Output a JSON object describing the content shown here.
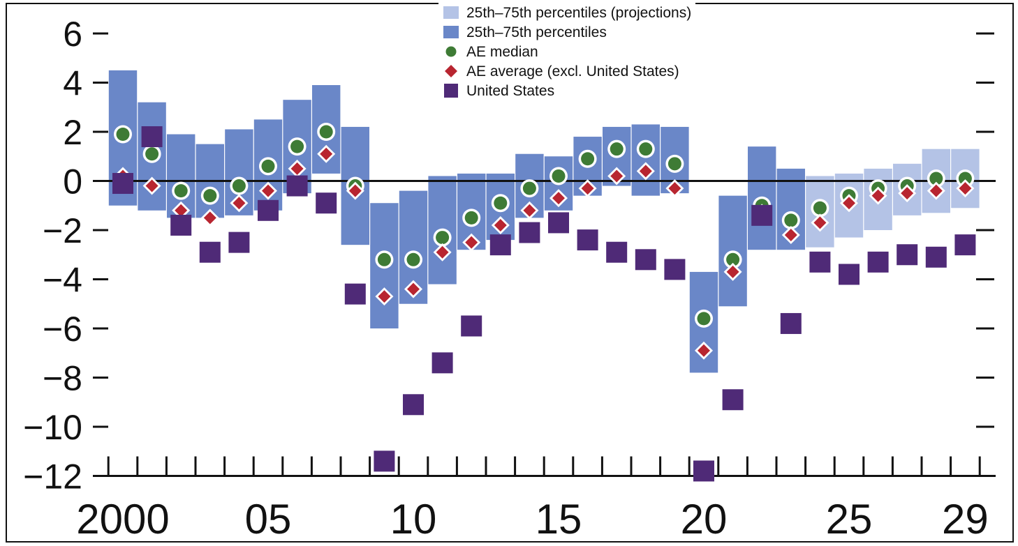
{
  "chart_data": {
    "type": "bar",
    "title": "",
    "xlabel": "",
    "ylabel": "",
    "x": [
      2000,
      2001,
      2002,
      2003,
      2004,
      2005,
      2006,
      2007,
      2008,
      2009,
      2010,
      2011,
      2012,
      2013,
      2014,
      2015,
      2016,
      2017,
      2018,
      2019,
      2020,
      2021,
      2022,
      2023,
      2024,
      2025,
      2026,
      2027,
      2028,
      2029
    ],
    "x_tick_labels": [
      {
        "x": 2000,
        "label": "2000"
      },
      {
        "x": 2005,
        "label": "05"
      },
      {
        "x": 2010,
        "label": "10"
      },
      {
        "x": 2015,
        "label": "15"
      },
      {
        "x": 2020,
        "label": "20"
      },
      {
        "x": 2025,
        "label": "25"
      },
      {
        "x": 2029,
        "label": "29"
      }
    ],
    "y_ticks": [
      6,
      4,
      2,
      0,
      -2,
      -4,
      -6,
      -8,
      -10,
      -12
    ],
    "y_tick_labels": [
      "6",
      "4",
      "2",
      "0",
      "−2",
      "−4",
      "−6",
      "−8",
      "−10",
      "−12"
    ],
    "ylim": [
      -12,
      6.5
    ],
    "zero_line": true,
    "grid": false,
    "projection_start": 2024,
    "legend_placement": "top-center",
    "legend": [
      {
        "label": "25th–75th percentiles (projections)",
        "kind": "band-projection",
        "color": "#b4c3e6"
      },
      {
        "label": "25th–75th percentiles",
        "kind": "band",
        "color": "#6a87c8"
      },
      {
        "label": "AE median",
        "kind": "circle",
        "color": "#3e7b35"
      },
      {
        "label": "AE average (excl. United States)",
        "kind": "diamond",
        "color": "#b82530"
      },
      {
        "label": "United States",
        "kind": "square",
        "color": "#4f2a77"
      }
    ],
    "series": [
      {
        "name": "25th–75th percentiles",
        "type": "range",
        "low": [
          -1.0,
          -1.2,
          -1.5,
          -1.5,
          -1.4,
          -1.2,
          -0.5,
          0.3,
          -2.6,
          -6.0,
          -5.0,
          -4.2,
          -2.8,
          -2.4,
          -1.5,
          -1.2,
          -0.6,
          -0.2,
          -0.6,
          -0.5,
          -7.8,
          -5.1,
          -2.8,
          -2.8,
          -2.7,
          -2.3,
          -2.0,
          -1.4,
          -1.3,
          -1.1
        ],
        "high": [
          4.5,
          3.2,
          1.9,
          1.5,
          2.1,
          2.5,
          3.3,
          3.9,
          2.2,
          -0.9,
          -0.4,
          0.2,
          0.3,
          0.3,
          1.1,
          1.0,
          1.8,
          2.2,
          2.3,
          2.2,
          -3.7,
          -0.6,
          1.4,
          0.5,
          0.2,
          0.3,
          0.5,
          0.7,
          1.3,
          1.3
        ]
      },
      {
        "name": "AE median",
        "type": "scatter",
        "values": [
          1.9,
          1.1,
          -0.4,
          -0.6,
          -0.2,
          0.6,
          1.4,
          2.0,
          -0.2,
          -3.2,
          -3.2,
          -2.3,
          -1.5,
          -0.9,
          -0.3,
          0.2,
          0.9,
          1.3,
          1.3,
          0.7,
          -5.6,
          -3.2,
          -1.0,
          -1.6,
          -1.1,
          -0.6,
          -0.3,
          -0.2,
          0.1,
          0.1
        ]
      },
      {
        "name": "AE average (excl. United States)",
        "type": "scatter",
        "values": [
          0.2,
          -0.2,
          -1.2,
          -1.5,
          -0.9,
          -0.4,
          0.5,
          1.1,
          -0.4,
          -4.7,
          -4.4,
          -2.9,
          -2.5,
          -1.8,
          -1.2,
          -0.7,
          -0.3,
          0.2,
          0.4,
          -0.3,
          -6.9,
          -3.7,
          -1.3,
          -2.2,
          -1.7,
          -0.9,
          -0.6,
          -0.5,
          -0.4,
          -0.3
        ]
      },
      {
        "name": "United States",
        "type": "scatter",
        "values": [
          -0.1,
          1.8,
          -1.8,
          -2.9,
          -2.5,
          -1.2,
          -0.2,
          -0.9,
          -4.6,
          -11.4,
          -9.1,
          -7.4,
          -5.9,
          -2.6,
          -2.1,
          -1.7,
          -2.4,
          -2.9,
          -3.2,
          -3.6,
          -11.8,
          -8.9,
          -1.4,
          -5.8,
          -3.3,
          -3.8,
          -3.3,
          -3.0,
          -3.1,
          -2.6
        ]
      }
    ]
  }
}
